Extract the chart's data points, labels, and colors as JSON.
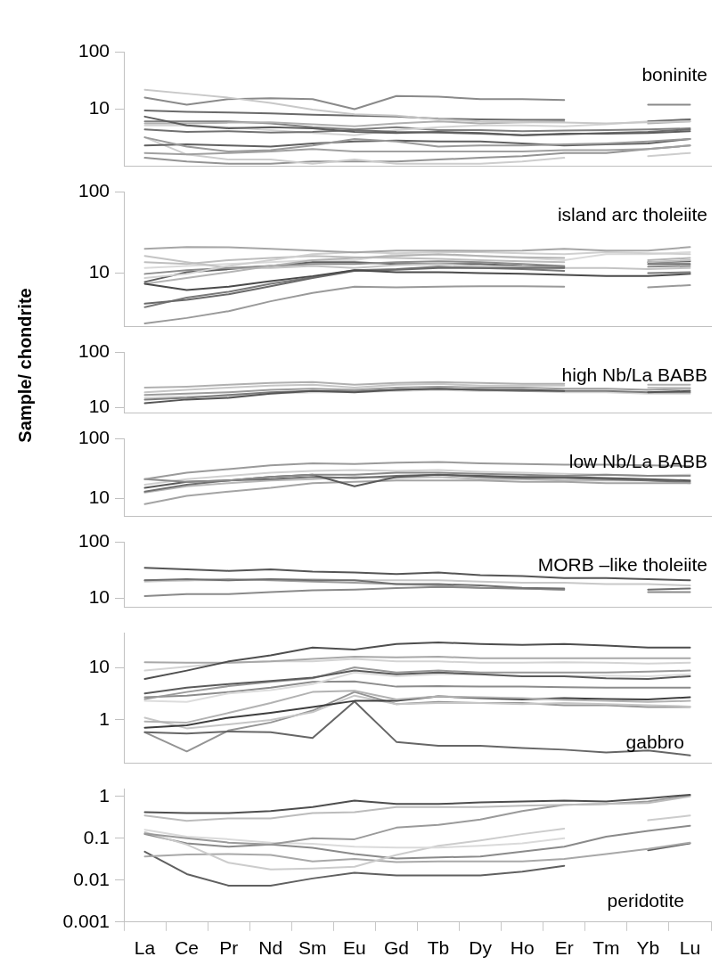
{
  "chart_data": [
    {
      "type": "line",
      "title": "boninite",
      "log": true,
      "ylim": [
        1,
        100
      ],
      "yticks": [
        10,
        100
      ],
      "tick_labels": "y",
      "marker": "none",
      "series": [
        {
          "color": "#c8c8c8",
          "values": [
            21.9,
            18.7,
            15.9,
            12.9,
            9.8,
            8.1,
            7.7,
            6.6,
            6.1,
            5.9,
            5.8,
            5.6,
            5.9,
            6.1
          ]
        },
        {
          "color": "#8a8a8a",
          "values": [
            16,
            12,
            15,
            15.5,
            15,
            10,
            17,
            16.5,
            15,
            15,
            14.5,
            null,
            12,
            12
          ]
        },
        {
          "color": "#6a6a6a",
          "values": [
            9.5,
            9,
            8.7,
            8.4,
            8,
            7.7,
            7.4,
            6.8,
            6.6,
            6.5,
            6.5,
            null,
            6.1,
            6.6
          ]
        },
        {
          "color": "#5c5c5c",
          "values": [
            7.4,
            5.2,
            4.6,
            4.8,
            4.6,
            4,
            3.8,
            4,
            3.8,
            3.5,
            3.7,
            3.7,
            3.8,
            4.1
          ]
        },
        {
          "color": "#b0b0b0",
          "values": [
            5.6,
            5.6,
            5.8,
            5.9,
            5.4,
            5,
            5.6,
            6.1,
            5.6,
            5.9,
            6.1,
            null,
            5.6,
            6.1
          ]
        },
        {
          "color": "#707070",
          "values": [
            4.4,
            4,
            4.1,
            3.9,
            4,
            4.3,
            4,
            3.9,
            3.7,
            3.5,
            3.6,
            3.8,
            4,
            4.4
          ]
        },
        {
          "color": "#9a9a9a",
          "values": [
            3.2,
            2.2,
            1.8,
            1.9,
            2.3,
            3,
            2.7,
            2.2,
            2.3,
            2.3,
            2.4,
            2.5,
            2.7,
            3
          ]
        },
        {
          "color": "#606060",
          "values": [
            2.3,
            2.4,
            2.3,
            2.2,
            2.5,
            2.7,
            2.8,
            2.7,
            2.7,
            2.5,
            2.3,
            2.4,
            2.5,
            3
          ]
        },
        {
          "color": "#a0a0a0",
          "values": [
            1.7,
            1.6,
            1.7,
            1.8,
            2,
            1.8,
            1.8,
            1.8,
            1.8,
            1.8,
            1.9,
            1.9,
            2,
            2.3
          ]
        },
        {
          "color": "#cdcdcd",
          "values": [
            3.2,
            1.6,
            1.3,
            1.3,
            1.1,
            1.3,
            1.1,
            1.1,
            1.1,
            1.2,
            1.4,
            null,
            1.5,
            1.7
          ]
        },
        {
          "color": "#949494",
          "values": [
            1.4,
            1.2,
            1.1,
            1.1,
            1.2,
            1.2,
            1.2,
            1.3,
            1.4,
            1.5,
            1.7,
            1.7,
            2,
            2.3
          ]
        },
        {
          "color": "#d4d4d4",
          "values": [
            5.2,
            5.2,
            4.8,
            4.3,
            3.8,
            3.5,
            4.3,
            4.8,
            5.2,
            5.2,
            5,
            5.4,
            6.1,
            6.6
          ]
        },
        {
          "color": "#808080",
          "values": [
            6.1,
            6.1,
            6.1,
            5.6,
            4.8,
            4.4,
            4.8,
            4.3,
            4.3,
            4.1,
            4.2,
            4.3,
            4.4,
            4.6
          ]
        }
      ]
    },
    {
      "type": "line",
      "title": "island arc tholeiite",
      "log": true,
      "ylim": [
        2.2,
        100
      ],
      "yticks": [
        10,
        100
      ],
      "tick_labels": "y",
      "marker": "none",
      "series": [
        {
          "color": "#a6a6a6",
          "values": [
            20,
            21,
            20.9,
            20,
            19,
            18,
            19,
            19,
            18.9,
            19,
            20,
            19,
            19,
            21
          ]
        },
        {
          "color": "#9a9a9a",
          "values": [
            2.4,
            2.8,
            3.4,
            4.5,
            5.7,
            6.8,
            6.7,
            6.8,
            6.9,
            6.9,
            6.8,
            null,
            6.7,
            7.1
          ]
        },
        {
          "color": "#4a4a4a",
          "values": [
            7.4,
            6.2,
            6.8,
            8,
            9.2,
            10.9,
            10.3,
            10.3,
            10,
            9.8,
            9.5,
            9.2,
            9.2,
            9.8
          ]
        },
        {
          "color": "#6a6a6a",
          "values": [
            4.2,
            4.7,
            5.5,
            6.9,
            8.7,
            10.7,
            11,
            11.6,
            11.6,
            11.6,
            11.6,
            null,
            13,
            13
          ]
        },
        {
          "color": "#7a7a7a",
          "values": [
            3.8,
            5,
            5.9,
            7.4,
            8.9,
            10.9,
            11.2,
            12,
            11.6,
            11.2,
            10.7,
            null,
            10,
            10.3
          ]
        },
        {
          "color": "#b4b4b4",
          "values": [
            7.4,
            8.7,
            10.3,
            12.3,
            14.5,
            15.4,
            16.3,
            17.2,
            16.3,
            15.7,
            15.4,
            null,
            14.5,
            15.4
          ]
        },
        {
          "color": "#d0d0d0",
          "values": [
            8.7,
            9.8,
            12.3,
            14.5,
            17.2,
            18.2,
            17.6,
            18.2,
            18.2,
            17.6,
            17.2,
            18.2,
            17.6,
            17.2
          ]
        },
        {
          "color": "#8c8c8c",
          "values": [
            9.8,
            10.9,
            11.6,
            12.3,
            13,
            13,
            13.7,
            14,
            13.7,
            13,
            12.3,
            null,
            12,
            12.3
          ]
        },
        {
          "color": "#bebebe",
          "values": [
            13.7,
            13,
            14.5,
            15.4,
            16.3,
            15.7,
            15.4,
            15,
            14.5,
            14,
            13.7,
            null,
            13.7,
            14.5
          ]
        },
        {
          "color": "#c4c4c4",
          "values": [
            16.3,
            13.7,
            11.6,
            11.6,
            12.3,
            11.6,
            12.6,
            13,
            12.3,
            12,
            11.6,
            11.6,
            11.2,
            11.6
          ]
        },
        {
          "color": "#dadada",
          "values": [
            11.6,
            12.3,
            13,
            13.7,
            14.5,
            14.5,
            17.2,
            16.8,
            16.3,
            15.4,
            14.5,
            17.2,
            17.2,
            18.2
          ]
        },
        {
          "color": "#5e5e5e",
          "values": [
            7.8,
            10.3,
            11.2,
            12.3,
            13.7,
            13.7,
            13,
            13,
            13,
            12.3,
            12,
            null,
            13.7,
            14
          ]
        }
      ]
    },
    {
      "type": "line",
      "title": "high Nb/La BABB",
      "log": true,
      "ylim": [
        8,
        100
      ],
      "yticks": [
        10,
        100
      ],
      "tick_labels": "y",
      "marker": "none",
      "series": [
        {
          "color": "#b0b0b0",
          "values": [
            23,
            24,
            26,
            28,
            29,
            26,
            28,
            29,
            28,
            27,
            27,
            null,
            26,
            26
          ]
        },
        {
          "color": "#c6c6c6",
          "values": [
            19,
            21,
            23,
            25,
            26,
            23,
            26,
            27,
            25,
            25,
            25,
            null,
            23,
            23
          ]
        },
        {
          "color": "#9c9c9c",
          "values": [
            17,
            18,
            19,
            21,
            22,
            21,
            23,
            24,
            23,
            23,
            22,
            22,
            21,
            22
          ]
        },
        {
          "color": "#555555",
          "values": [
            12,
            14,
            15,
            18,
            20,
            19,
            21,
            22,
            21,
            21,
            20,
            null,
            19,
            20
          ]
        },
        {
          "color": "#7c7c7c",
          "values": [
            14,
            15,
            17,
            19,
            20,
            20,
            21,
            22,
            21,
            20,
            20,
            20,
            19,
            19
          ]
        },
        {
          "color": "#d2d2d2",
          "values": [
            15,
            16,
            16,
            18,
            19,
            19,
            20,
            21,
            20,
            20,
            19,
            19,
            18,
            18
          ]
        }
      ]
    },
    {
      "type": "line",
      "title": "low Nb/La BABB",
      "ylabel": "Sample/ chondrite",
      "log": true,
      "ylim": [
        5,
        100
      ],
      "yticks": [
        10,
        100
      ],
      "tick_labels": "y",
      "marker": "none",
      "series": [
        {
          "color": "#9a9a9a",
          "values": [
            21,
            27,
            31,
            36,
            39,
            38,
            40,
            41,
            39,
            38,
            37,
            37,
            36,
            35
          ]
        },
        {
          "color": "#8a8a8a",
          "values": [
            21,
            19,
            20,
            23,
            25,
            25,
            27,
            27,
            26,
            25,
            24,
            25,
            24,
            24
          ]
        },
        {
          "color": "#5a5a5a",
          "values": [
            15,
            19,
            20,
            23,
            25,
            16,
            23,
            25,
            24,
            23,
            23,
            22,
            21,
            20
          ]
        },
        {
          "color": "#a4a4a4",
          "values": [
            8,
            11,
            13,
            15,
            18,
            19,
            20,
            20,
            20,
            19,
            19,
            18,
            18,
            18
          ]
        },
        {
          "color": "#707070",
          "values": [
            13,
            17,
            20,
            21,
            23,
            22,
            24,
            25,
            23,
            22,
            22,
            21,
            20,
            19
          ]
        },
        {
          "color": "#d0d0d0",
          "values": [
            17,
            21,
            24,
            27,
            29,
            30,
            29,
            30,
            28,
            27,
            26,
            25,
            24,
            25
          ]
        },
        {
          "color": "#b8b8b8",
          "values": [
            12.5,
            16,
            18,
            20,
            21,
            23,
            22,
            23,
            21,
            21,
            20,
            20,
            20,
            18
          ]
        }
      ]
    },
    {
      "type": "line",
      "title": "MORB –like tholeiite",
      "log": true,
      "ylim": [
        7,
        100
      ],
      "yticks": [
        10,
        100
      ],
      "tick_labels": "y",
      "marker": "none",
      "series": [
        {
          "color": "#555555",
          "values": [
            35,
            33,
            31,
            33,
            30,
            29,
            27.3,
            29,
            26,
            25,
            23,
            23,
            22,
            21
          ]
        },
        {
          "color": "#707070",
          "values": [
            21,
            22,
            21,
            22,
            21,
            21,
            18,
            18,
            17,
            15.5,
            15,
            null,
            14.4,
            15
          ]
        },
        {
          "color": "#c8c8c8",
          "values": [
            20,
            21,
            21,
            22,
            22,
            21,
            21,
            21,
            20,
            19,
            19,
            18,
            18,
            17
          ]
        },
        {
          "color": "#8a8a8a",
          "values": [
            11,
            12,
            12,
            13,
            14,
            14.4,
            15.3,
            16,
            15.5,
            15,
            14.4,
            null,
            13,
            13
          ]
        },
        {
          "color": "#9e9e9e",
          "values": [
            21,
            21,
            22,
            21,
            20,
            19,
            18,
            17,
            15.5,
            15,
            14.4,
            null,
            null,
            null
          ]
        }
      ]
    },
    {
      "type": "line",
      "title": "gabbro",
      "log": true,
      "ylim": [
        0.15,
        45
      ],
      "yticks": [
        1,
        10
      ],
      "tick_labels": "y",
      "marker": "none",
      "series": [
        {
          "color": "#4e4e4e",
          "values": [
            6,
            8.7,
            13,
            17,
            24,
            22,
            28,
            30,
            28,
            27,
            28,
            26,
            24,
            24
          ]
        },
        {
          "color": "#a8a8a8",
          "values": [
            12.6,
            12.3,
            12.3,
            13,
            14.5,
            16,
            15.5,
            16,
            15,
            15,
            15,
            15,
            15,
            15
          ]
        },
        {
          "color": "#d4d4d4",
          "values": [
            8.7,
            10.3,
            12.3,
            13,
            13,
            14.5,
            13,
            13,
            12.3,
            12.3,
            12.6,
            12.3,
            11.8,
            12.3
          ]
        },
        {
          "color": "#5a5a5a",
          "values": [
            3.2,
            4.1,
            4.8,
            5.5,
            6.4,
            8.7,
            7.4,
            8,
            7.4,
            6.8,
            6.8,
            6.2,
            6,
            6.8
          ]
        },
        {
          "color": "#9a9a9a",
          "values": [
            2.5,
            3.4,
            4.4,
            5.3,
            6.2,
            10,
            8,
            8.7,
            8,
            8,
            8,
            8,
            8.3,
            8.7
          ]
        },
        {
          "color": "#dcdcdc",
          "values": [
            2.3,
            2.2,
            3.2,
            3.7,
            4.8,
            8,
            6.8,
            7.4,
            7.4,
            6.8,
            6.8,
            7,
            6.8,
            7.4
          ]
        },
        {
          "color": "#8c8c8c",
          "values": [
            2.7,
            2.9,
            3.4,
            4.1,
            5.3,
            5.4,
            4.3,
            4.4,
            4.3,
            4.3,
            4.2,
            4.1,
            4.1,
            4.1
          ]
        },
        {
          "color": "#b2b2b2",
          "values": [
            0.93,
            0.89,
            1.36,
            2.1,
            3.4,
            3.6,
            2.45,
            2.8,
            2.7,
            2.6,
            2.4,
            2.3,
            2.2,
            2.3
          ]
        },
        {
          "color": "#3e3e3e",
          "values": [
            0.71,
            0.79,
            1.1,
            1.36,
            1.75,
            2.3,
            2.3,
            2.8,
            2.6,
            2.45,
            2.6,
            2.5,
            2.45,
            2.7
          ]
        },
        {
          "color": "#c6c6c6",
          "values": [
            1.1,
            0.69,
            0.82,
            1,
            1.4,
            2.9,
            2,
            2.1,
            2.1,
            2,
            2.1,
            2,
            1.9,
            1.8
          ]
        },
        {
          "color": "#666666",
          "values": [
            0.58,
            0.55,
            0.6,
            0.58,
            0.45,
            2.25,
            0.38,
            0.32,
            0.32,
            0.29,
            0.27,
            0.24,
            0.26,
            0.21
          ]
        },
        {
          "color": "#949494",
          "values": [
            0.58,
            0.25,
            0.63,
            0.89,
            1.5,
            3.4,
            2,
            2.2,
            2.1,
            2.1,
            1.9,
            1.9,
            1.75,
            1.75
          ]
        }
      ]
    },
    {
      "type": "line",
      "title": "peridotite",
      "categories": [
        "La",
        "Ce",
        "Pr",
        "Nd",
        "Sm",
        "Eu",
        "Gd",
        "Tb",
        "Dy",
        "Ho",
        "Er",
        "Tm",
        "Yb",
        "Lu"
      ],
      "log": true,
      "ylim": [
        0.001,
        1.5
      ],
      "yticks": [
        0.001,
        0.01,
        0.1,
        1
      ],
      "marker": "none",
      "series": [
        {
          "color": "#4e4e4e",
          "values": [
            0.42,
            0.4,
            0.4,
            0.45,
            0.56,
            0.8,
            0.66,
            0.66,
            0.72,
            0.76,
            0.8,
            0.76,
            0.9,
            1.1
          ]
        },
        {
          "color": "#bcbcbc",
          "values": [
            0.35,
            0.26,
            0.3,
            0.3,
            0.4,
            0.42,
            0.56,
            0.56,
            0.56,
            0.6,
            0.63,
            0.66,
            0.7,
            1
          ]
        },
        {
          "color": "#9a9a9a",
          "values": [
            0.13,
            0.1,
            0.079,
            0.071,
            0.1,
            0.095,
            0.18,
            0.21,
            0.28,
            0.45,
            0.63,
            0.66,
            0.76,
            1.05
          ]
        },
        {
          "color": "#dadada",
          "values": [
            0.16,
            0.11,
            0.095,
            0.079,
            0.074,
            0.063,
            0.06,
            0.06,
            0.066,
            0.076,
            0.1,
            null,
            null,
            null
          ]
        },
        {
          "color": "#cccccc",
          "values": [
            0.14,
            0.071,
            0.026,
            0.018,
            0.019,
            0.021,
            0.04,
            0.066,
            0.089,
            0.126,
            0.17,
            null,
            0.27,
            0.35
          ]
        },
        {
          "color": "#8a8a8a",
          "values": [
            0.126,
            0.076,
            0.063,
            0.071,
            0.059,
            0.042,
            0.033,
            0.035,
            0.037,
            0.048,
            0.063,
            0.11,
            0.15,
            0.2
          ]
        },
        {
          "color": "#a8a8a8",
          "values": [
            0.037,
            0.041,
            0.042,
            0.04,
            0.028,
            0.032,
            0.027,
            0.028,
            0.028,
            0.028,
            0.032,
            0.042,
            0.056,
            0.079
          ]
        },
        {
          "color": "#606060",
          "values": [
            0.048,
            0.014,
            0.0074,
            0.0074,
            0.011,
            0.015,
            0.013,
            0.013,
            0.013,
            0.016,
            0.022,
            null,
            0.052,
            0.076
          ]
        }
      ]
    }
  ]
}
